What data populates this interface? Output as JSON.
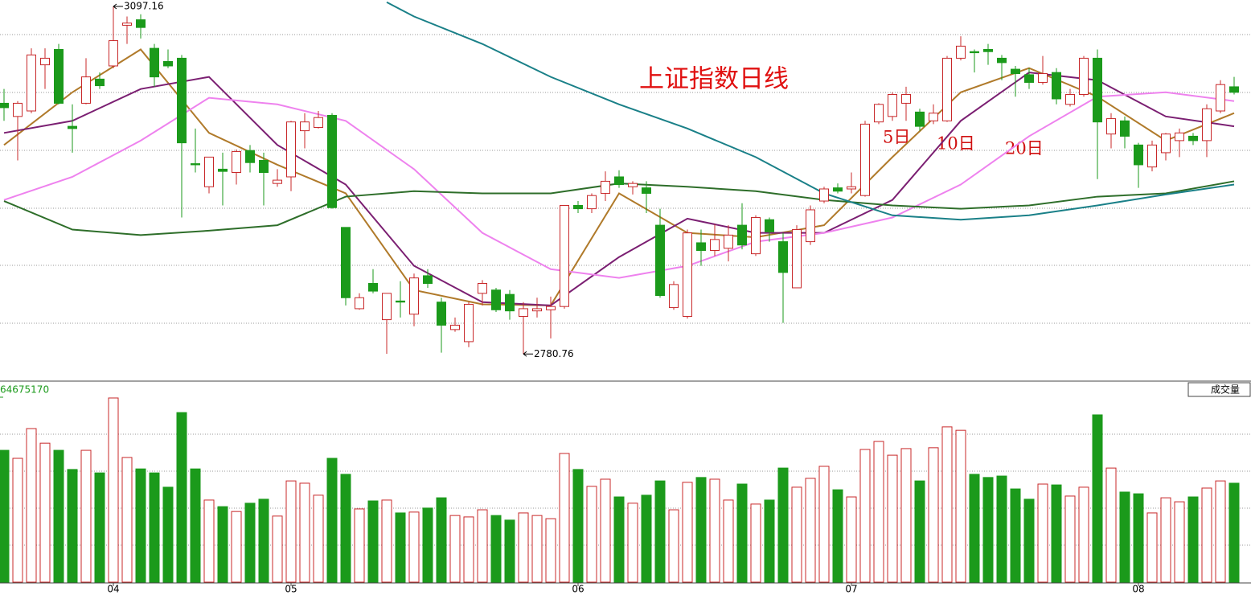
{
  "chart_data": [
    {
      "type": "candlestick",
      "title": "上证指数日线",
      "categories": [
        null,
        null,
        null,
        null,
        null,
        null,
        null,
        null,
        "04",
        null,
        null,
        null,
        null,
        null,
        null,
        null,
        null,
        null,
        null,
        null,
        null,
        "05",
        null,
        null,
        null,
        null,
        null,
        null,
        null,
        null,
        null,
        null,
        null,
        null,
        null,
        null,
        null,
        null,
        null,
        null,
        null,
        null,
        "06",
        null,
        null,
        null,
        null,
        null,
        null,
        null,
        null,
        null,
        null,
        null,
        null,
        null,
        null,
        null,
        null,
        null,
        null,
        null,
        "07",
        null,
        null,
        null,
        null,
        null,
        null,
        null,
        null,
        null,
        null,
        null,
        null,
        null,
        null,
        null,
        null,
        null,
        null,
        null,
        null,
        "08",
        null,
        null,
        null,
        null,
        null,
        null,
        null
      ],
      "ohlc": [
        [
          3009,
          3022,
          2993,
          3005
        ],
        [
          2997,
          3011,
          2957,
          3009
        ],
        [
          3002,
          3059,
          3000,
          3053
        ],
        [
          3044,
          3059,
          3022,
          3050
        ],
        [
          3058,
          3063,
          3008,
          3009
        ],
        [
          2988,
          3008,
          2964,
          2986
        ],
        [
          3009,
          3050,
          3008,
          3033
        ],
        [
          3031,
          3037,
          3022,
          3025
        ],
        [
          3043,
          3097.16,
          3041,
          3066
        ],
        [
          3080,
          3088,
          3063,
          3082
        ],
        [
          3085,
          3090,
          3068,
          3078
        ],
        [
          3059,
          3063,
          3024,
          3033
        ],
        [
          3047,
          3058,
          3041,
          3043
        ],
        [
          3050,
          3053,
          2905,
          2973
        ],
        [
          2954,
          2986,
          2946,
          2953
        ],
        [
          2933,
          2960,
          2927,
          2960
        ],
        [
          2949,
          2964,
          2916,
          2947
        ],
        [
          2946,
          2967,
          2935,
          2965
        ],
        [
          2966,
          2971,
          2946,
          2955
        ],
        [
          2957,
          2964,
          2916,
          2946
        ],
        [
          2936,
          2949,
          2933,
          2939
        ],
        [
          2942,
          2993,
          2929,
          2992
        ],
        [
          2984,
          3000,
          2968,
          2992
        ],
        [
          2987,
          3002,
          2986,
          2996
        ],
        [
          2998,
          3000,
          2913,
          2914
        ],
        [
          2896,
          2896,
          2825,
          2832
        ],
        [
          2822,
          2836,
          2821,
          2832
        ],
        [
          2845,
          2858,
          2836,
          2838
        ],
        [
          2812,
          2836,
          2781,
          2836
        ],
        [
          2829,
          2847,
          2814,
          2828
        ],
        [
          2817,
          2854,
          2806,
          2850
        ],
        [
          2852,
          2858,
          2841,
          2845
        ],
        [
          2828,
          2832,
          2782,
          2807
        ],
        [
          2803,
          2814,
          2801,
          2807
        ],
        [
          2792,
          2828,
          2787,
          2826
        ],
        [
          2836,
          2848,
          2825,
          2845
        ],
        [
          2839,
          2841,
          2819,
          2821
        ],
        [
          2835,
          2839,
          2812,
          2820
        ],
        [
          2815,
          2828,
          2780.76,
          2822
        ],
        [
          2820,
          2832,
          2814,
          2822
        ],
        [
          2821,
          2833,
          2795,
          2824
        ],
        [
          2824,
          2916,
          2822,
          2916
        ],
        [
          2916,
          2920,
          2909,
          2913
        ],
        [
          2913,
          2927,
          2909,
          2925
        ],
        [
          2927,
          2947,
          2920,
          2938
        ],
        [
          2942,
          2948,
          2932,
          2935
        ],
        [
          2933,
          2938,
          2926,
          2936
        ],
        [
          2932,
          2938,
          2909,
          2927
        ],
        [
          2898,
          2913,
          2832,
          2834
        ],
        [
          2823,
          2847,
          2821,
          2844
        ],
        [
          2815,
          2894,
          2813,
          2891
        ],
        [
          2882,
          2894,
          2861,
          2875
        ],
        [
          2875,
          2899,
          2870,
          2885
        ],
        [
          2877,
          2898,
          2865,
          2889
        ],
        [
          2898,
          2918,
          2876,
          2880
        ],
        [
          2872,
          2907,
          2870,
          2905
        ],
        [
          2903,
          2905,
          2883,
          2892
        ],
        [
          2883,
          2891,
          2809,
          2855
        ],
        [
          2841,
          2898,
          2841,
          2894
        ],
        [
          2883,
          2916,
          2880,
          2912
        ],
        [
          2920,
          2933,
          2918,
          2931
        ],
        [
          2932,
          2936,
          2927,
          2929
        ],
        [
          2931,
          2946,
          2927,
          2933
        ],
        [
          2925,
          2993,
          2924,
          2990
        ],
        [
          2992,
          3009,
          2990,
          3008
        ],
        [
          2997,
          3019,
          2993,
          3017
        ],
        [
          3009,
          3024,
          2993,
          3017
        ],
        [
          3001,
          3004,
          2984,
          2988
        ],
        [
          2993,
          3008,
          2990,
          3000
        ],
        [
          2993,
          3052,
          2992,
          3050
        ],
        [
          3050,
          3070,
          3048,
          3061
        ],
        [
          3056,
          3058,
          3037,
          3055
        ],
        [
          3058,
          3063,
          3044,
          3056
        ],
        [
          3050,
          3053,
          3030,
          3046
        ],
        [
          3040,
          3043,
          3015,
          3036
        ],
        [
          3035,
          3041,
          3022,
          3028
        ],
        [
          3028,
          3052,
          3026,
          3036
        ],
        [
          3037,
          3041,
          3008,
          3013
        ],
        [
          3008,
          3022,
          3006,
          3017
        ],
        [
          3017,
          3052,
          3015,
          3050
        ],
        [
          3050,
          3058,
          2940,
          2992
        ],
        [
          2981,
          3000,
          2968,
          2995
        ],
        [
          2993,
          2997,
          2968,
          2979
        ],
        [
          2971,
          2973,
          2932,
          2953
        ],
        [
          2951,
          2975,
          2947,
          2971
        ],
        [
          2964,
          2982,
          2957,
          2981
        ],
        [
          2975,
          2986,
          2960,
          2982
        ],
        [
          2979,
          2982,
          2971,
          2975
        ],
        [
          2975,
          3008,
          2960,
          3004
        ],
        [
          3002,
          3030,
          3000,
          3026
        ],
        [
          3024,
          3033,
          3017,
          3019
        ]
      ],
      "ylim": [
        2759,
        3103
      ],
      "up_color": "#c8282a",
      "down_color": "#1b9a1b",
      "series": [
        {
          "color": "#b07a2a",
          "x": [
            0,
            5,
            10,
            15,
            20,
            25,
            30,
            35,
            40,
            45,
            50,
            55,
            60,
            65,
            70,
            75,
            80,
            85,
            90
          ],
          "values": [
            2971,
            3019,
            3058,
            2982,
            2953,
            2927,
            2839,
            2826,
            2825,
            2927,
            2891,
            2887,
            2898,
            2960,
            3019,
            3041,
            3015,
            2975,
            3000
          ]
        },
        {
          "color": "#7b1f72",
          "x": [
            0,
            5,
            10,
            15,
            20,
            25,
            30,
            35,
            40,
            45,
            50,
            55,
            60,
            65,
            70,
            75,
            80,
            85,
            90
          ],
          "values": [
            2982,
            2993,
            3022,
            3033,
            2971,
            2935,
            2861,
            2828,
            2825,
            2869,
            2904,
            2891,
            2891,
            2921,
            2993,
            3037,
            3030,
            2997,
            2988
          ]
        },
        {
          "color": "#ee82ee",
          "x": [
            0,
            5,
            10,
            15,
            20,
            25,
            30,
            35,
            40,
            45,
            50,
            55,
            60,
            65,
            70,
            75,
            80,
            85,
            90
          ],
          "values": [
            2921,
            2942,
            2975,
            3014,
            3008,
            2993,
            2949,
            2891,
            2858,
            2850,
            2861,
            2883,
            2891,
            2905,
            2935,
            2979,
            3015,
            3019,
            3011
          ]
        },
        {
          "color": "#2e6e2a",
          "x": [
            0,
            5,
            10,
            15,
            20,
            25,
            30,
            35,
            40,
            45,
            50,
            55,
            60,
            65,
            70,
            75,
            80,
            85,
            90
          ],
          "values": [
            2920,
            2894,
            2889,
            2893,
            2898,
            2924,
            2929,
            2927,
            2927,
            2936,
            2933,
            2929,
            2921,
            2916,
            2913,
            2916,
            2924,
            2927,
            2938
          ]
        },
        {
          "color": "#1a8088",
          "x": [
            28,
            30,
            35,
            40,
            45,
            50,
            55,
            60,
            65,
            70,
            75,
            80,
            85,
            90
          ],
          "values": [
            3101,
            3088,
            3063,
            3033,
            3008,
            2986,
            2960,
            2927,
            2907,
            2903,
            2907,
            2916,
            2926,
            2935
          ]
        }
      ],
      "annotations": [
        "5日",
        "10日",
        "20日"
      ]
    },
    {
      "type": "bar",
      "title": "成交量",
      "ylim": [
        0,
        64675170
      ],
      "yticks": [
        64675170
      ],
      "values": [
        46100000,
        43300000,
        53700000,
        48600000,
        46100000,
        39400000,
        46100000,
        38200000,
        64400000,
        43600000,
        39600000,
        38200000,
        33200000,
        59300000,
        39600000,
        28700000,
        26400000,
        24700000,
        27600000,
        29000000,
        23100000,
        35400000,
        34600000,
        30400000,
        43300000,
        37700000,
        25600000,
        28400000,
        28700000,
        24200000,
        24500000,
        25900000,
        29500000,
        23300000,
        22800000,
        25300000,
        23300000,
        21700000,
        24200000,
        23300000,
        22200000,
        45000000,
        39400000,
        33500000,
        36000000,
        29800000,
        27600000,
        30400000,
        35400000,
        25300000,
        34900000,
        36600000,
        36000000,
        28700000,
        34300000,
        27300000,
        28700000,
        39900000,
        33200000,
        36300000,
        40500000,
        32300000,
        29800000,
        46400000,
        49200000,
        44400000,
        46700000,
        35400000,
        47000000,
        54300000,
        53100000,
        37700000,
        36600000,
        37100000,
        32600000,
        29000000,
        34300000,
        34000000,
        30100000,
        33200000,
        58500000,
        39900000,
        31500000,
        30900000,
        24200000,
        29500000,
        28100000,
        29800000,
        32900000,
        35400000,
        34600000
      ]
    }
  ]
}
